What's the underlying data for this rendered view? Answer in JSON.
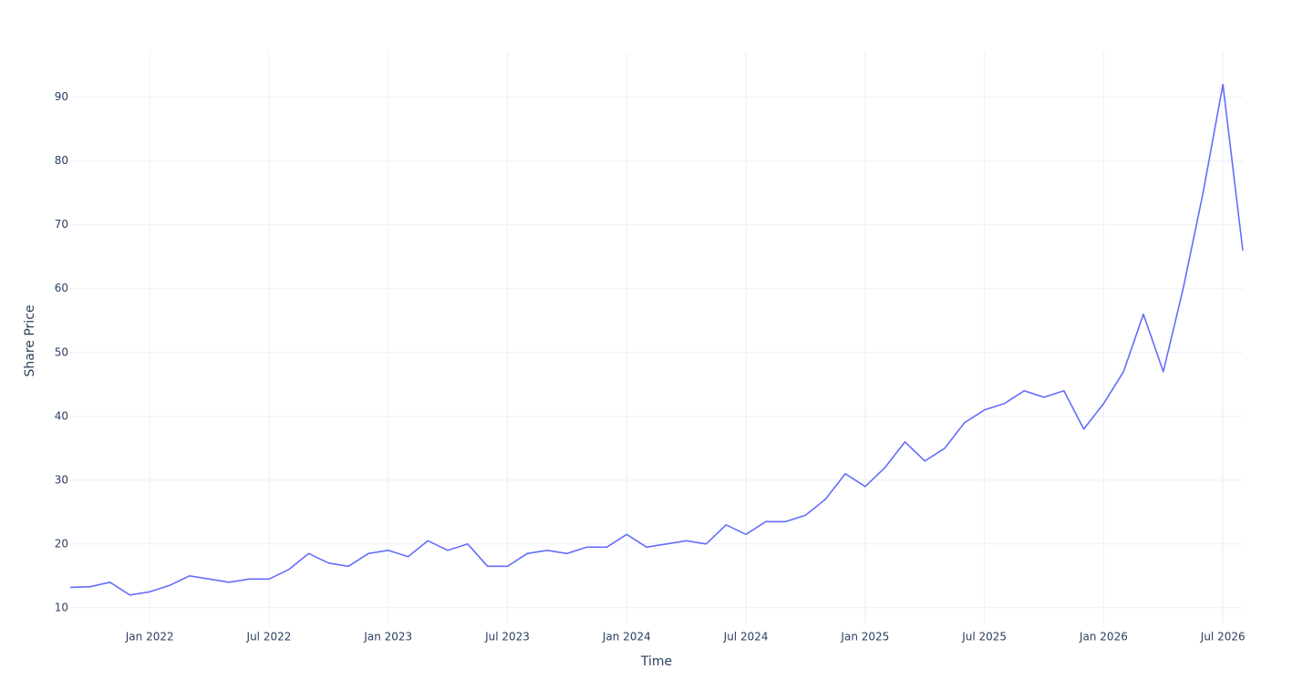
{
  "chart_data": {
    "type": "line",
    "x_label": "Time",
    "y_label": "Share Price",
    "x": [
      "2021-09",
      "2021-10",
      "2021-11",
      "2021-12",
      "2022-01",
      "2022-02",
      "2022-03",
      "2022-04",
      "2022-05",
      "2022-06",
      "2022-07",
      "2022-08",
      "2022-09",
      "2022-10",
      "2022-11",
      "2022-12",
      "2023-01",
      "2023-02",
      "2023-03",
      "2023-04",
      "2023-05",
      "2023-06",
      "2023-07",
      "2023-08",
      "2023-09",
      "2023-10",
      "2023-11",
      "2023-12",
      "2024-01",
      "2024-02",
      "2024-03",
      "2024-04",
      "2024-05",
      "2024-06",
      "2024-07",
      "2024-08",
      "2024-09",
      "2024-10",
      "2024-11",
      "2024-12",
      "2025-01",
      "2025-02",
      "2025-03",
      "2025-04",
      "2025-05",
      "2025-06",
      "2025-07",
      "2025-08",
      "2025-09",
      "2025-10",
      "2025-11",
      "2025-12",
      "2026-01",
      "2026-02",
      "2026-03",
      "2026-04",
      "2026-05",
      "2026-06",
      "2026-07",
      "2026-08"
    ],
    "series": [
      {
        "name": "Share Price",
        "color": "#636efa",
        "values": [
          13.2,
          13.3,
          14,
          12,
          12.5,
          13.5,
          15,
          14.5,
          14,
          14.5,
          14.5,
          16,
          18.5,
          17,
          16.5,
          18.5,
          19,
          18,
          20.5,
          19,
          20,
          16.5,
          16.5,
          18.5,
          19,
          18.5,
          19.5,
          19.5,
          21.5,
          19.5,
          20,
          20.5,
          20,
          23,
          21.5,
          23.5,
          23.5,
          24.5,
          27,
          31,
          29,
          32,
          36,
          33,
          35,
          39,
          41,
          42,
          44,
          43,
          44,
          38,
          42,
          47,
          56,
          47,
          60,
          75,
          92,
          66
        ]
      }
    ],
    "xlim": [
      "2021-09",
      "2026-08"
    ],
    "xticks": [
      {
        "value": "2022-01",
        "label": "Jan 2022"
      },
      {
        "value": "2022-07",
        "label": "Jul 2022"
      },
      {
        "value": "2023-01",
        "label": "Jan 2023"
      },
      {
        "value": "2023-07",
        "label": "Jul 2023"
      },
      {
        "value": "2024-01",
        "label": "Jan 2024"
      },
      {
        "value": "2024-07",
        "label": "Jul 2024"
      },
      {
        "value": "2025-01",
        "label": "Jan 2025"
      },
      {
        "value": "2025-07",
        "label": "Jul 2025"
      },
      {
        "value": "2026-01",
        "label": "Jan 2026"
      },
      {
        "value": "2026-07",
        "label": "Jul 2026"
      }
    ],
    "ylim": [
      7.4,
      97.1
    ],
    "yticks": [
      10,
      20,
      30,
      40,
      50,
      60,
      70,
      80,
      90
    ],
    "grid": true
  }
}
